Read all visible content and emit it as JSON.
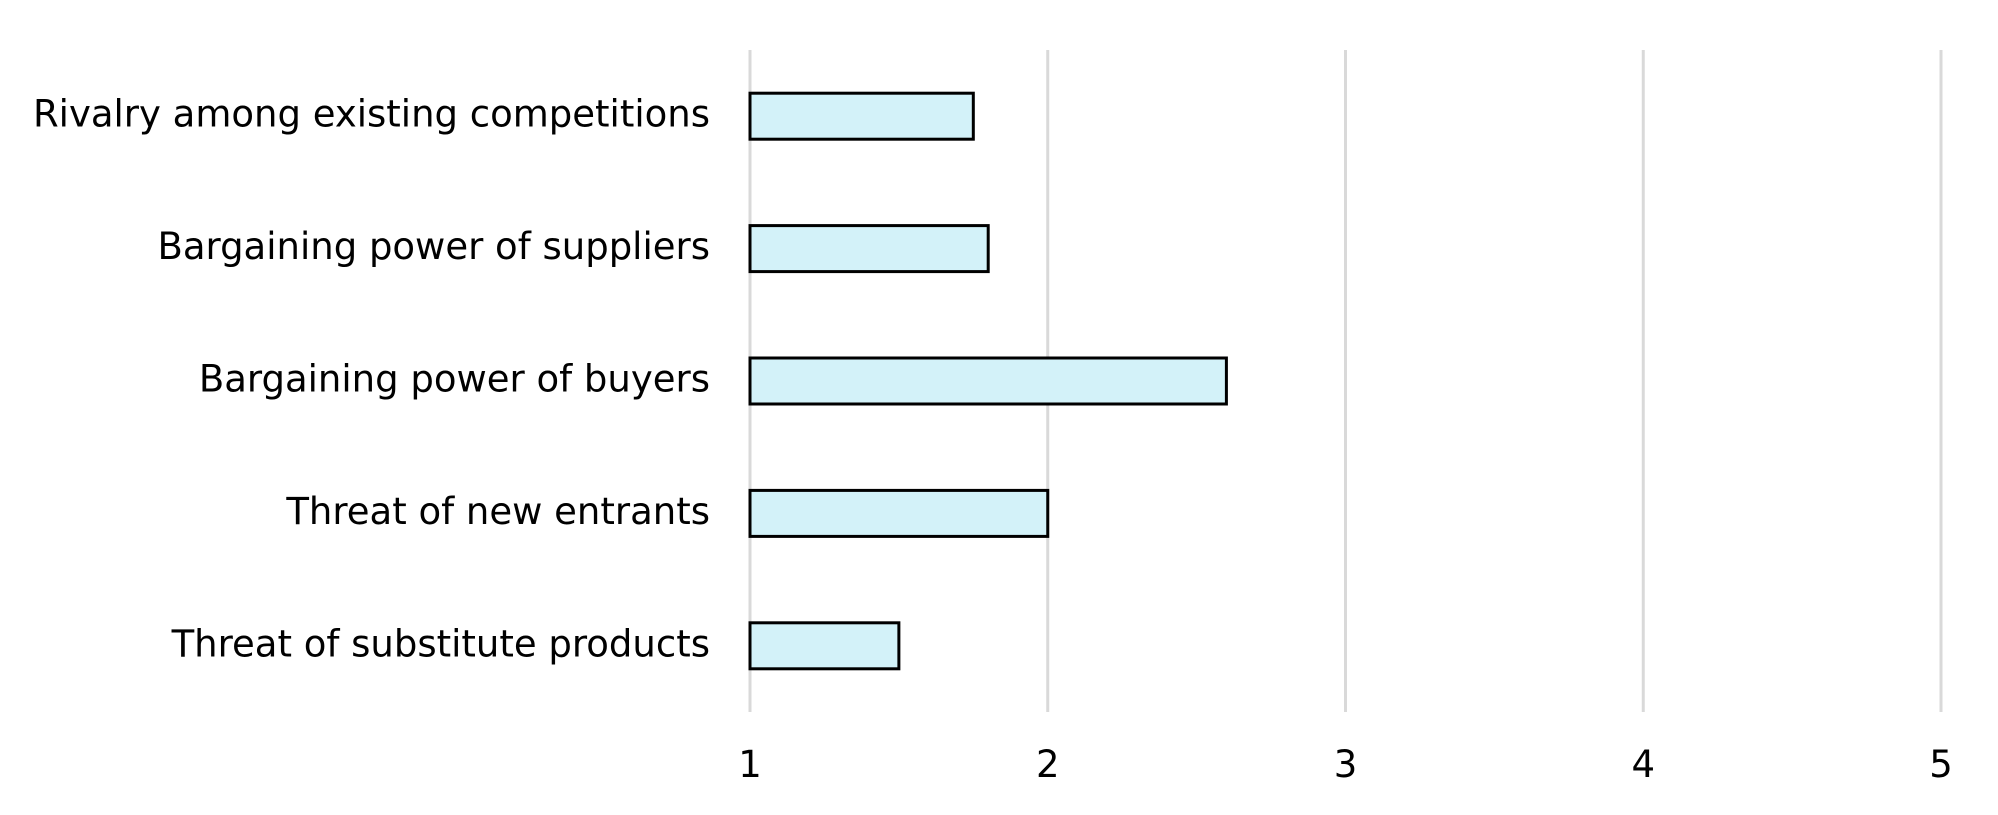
{
  "chart_data": {
    "type": "bar",
    "orientation": "horizontal",
    "categories": [
      "Rivalry among existing competitions",
      "Bargaining power of suppliers",
      "Bargaining power of buyers",
      "Threat of new entrants",
      "Threat of substitute products"
    ],
    "values": [
      1.75,
      1.8,
      2.6,
      2.0,
      1.5
    ],
    "title": "",
    "xlabel": "",
    "ylabel": "",
    "xlim": [
      1,
      5
    ],
    "x_ticks": [
      "1",
      "2",
      "3",
      "4",
      "5"
    ],
    "grid": "vertical",
    "legend": "none",
    "colors": {
      "bar_fill": "#d3f2f9",
      "bar_stroke": "#000000",
      "grid": "#d9d9d9"
    }
  }
}
